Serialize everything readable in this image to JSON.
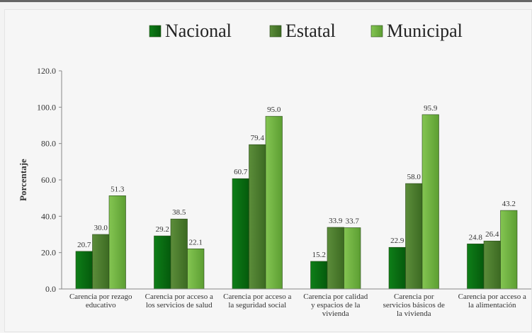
{
  "chart_data": {
    "type": "bar",
    "title": "",
    "xlabel": "",
    "ylabel": "Porcentaje",
    "ylim": [
      0,
      120
    ],
    "yticks": [
      "0.0",
      "20.0",
      "40.0",
      "60.0",
      "80.0",
      "100.0",
      "120.0"
    ],
    "ytick_values": [
      0,
      20,
      40,
      60,
      80,
      100,
      120
    ],
    "legend_position": "top",
    "grid": false,
    "categories": [
      [
        "Carencia por rezago",
        "educativo"
      ],
      [
        "Carencia por acceso a",
        "los servicios de salud"
      ],
      [
        "Carencia por acceso a",
        "la seguridad social"
      ],
      [
        "Carencia por calidad",
        "y espacios de la",
        "vivienda"
      ],
      [
        "Carencia por",
        "servicios básicos de",
        "la vivienda"
      ],
      [
        "Carencia por acceso a",
        "la alimentación"
      ]
    ],
    "series": [
      {
        "name": "Nacional",
        "color": "#0a6b12",
        "values": [
          20.7,
          29.2,
          60.7,
          15.2,
          22.9,
          24.8
        ]
      },
      {
        "name": "Estatal",
        "color": "#4c7d2e",
        "values": [
          30.0,
          38.5,
          79.4,
          33.9,
          58.0,
          26.4
        ]
      },
      {
        "name": "Municipal",
        "color": "#6fb43f",
        "values": [
          51.3,
          22.1,
          95.0,
          33.7,
          95.9,
          43.2
        ]
      }
    ],
    "value_labels": [
      [
        "20.7",
        "29.2",
        "60.7",
        "15.2",
        "22.9",
        "24.8"
      ],
      [
        "30.0",
        "38.5",
        "79.4",
        "33.9",
        "58.0",
        "26.4"
      ],
      [
        "51.3",
        "22.1",
        "95.0",
        "33.7",
        "95.9",
        "43.2"
      ]
    ]
  }
}
